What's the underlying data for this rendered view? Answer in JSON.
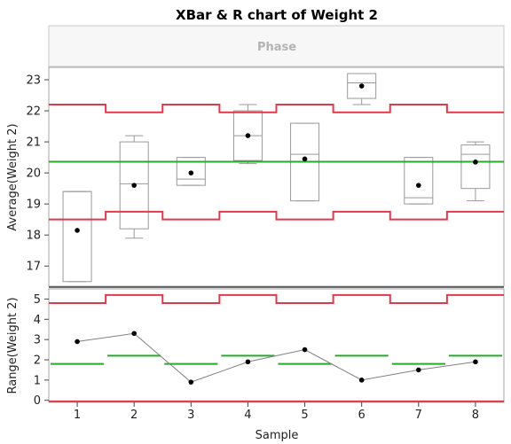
{
  "chart_data": {
    "type": "control-chart",
    "title": "XBar & R chart of Weight 2",
    "phase_label": "Phase",
    "xlabel": "Sample",
    "categories": [
      "1",
      "2",
      "3",
      "4",
      "5",
      "6",
      "7",
      "8"
    ],
    "colors": {
      "limit": "#e0394b",
      "center": "#2aa82a",
      "box": "#999999",
      "point": "#000000",
      "line": "#808080"
    },
    "xbar": {
      "ylabel": "Average(Weight 2)",
      "yticks": [
        "17",
        "18",
        "19",
        "20",
        "21",
        "22",
        "23"
      ],
      "ylim": [
        16.35,
        23.4
      ],
      "means": [
        18.15,
        19.6,
        20.0,
        21.2,
        20.45,
        22.8,
        19.6,
        20.35
      ],
      "boxes": [
        {
          "min": 16.5,
          "q1": 16.5,
          "median": 19.4,
          "q3": 19.4,
          "max": 19.4
        },
        {
          "min": 17.9,
          "q1": 18.2,
          "median": 19.65,
          "q3": 21.0,
          "max": 21.2
        },
        {
          "min": 19.6,
          "q1": 19.6,
          "median": 19.8,
          "q3": 20.5,
          "max": 20.5
        },
        {
          "min": 20.3,
          "q1": 20.4,
          "median": 21.2,
          "q3": 22.0,
          "max": 22.2
        },
        {
          "min": 19.1,
          "q1": 19.1,
          "median": 20.6,
          "q3": 21.6,
          "max": 21.6
        },
        {
          "min": 22.2,
          "q1": 22.4,
          "median": 22.9,
          "q3": 23.2,
          "max": 23.2
        },
        {
          "min": 19.0,
          "q1": 19.0,
          "median": 19.2,
          "q3": 20.5,
          "max": 20.5
        },
        {
          "min": 19.1,
          "q1": 19.5,
          "median": 20.6,
          "q3": 20.9,
          "max": 21.0
        }
      ],
      "center": 20.36,
      "ucl": [
        22.2,
        21.95,
        22.2,
        21.95,
        22.2,
        21.95,
        22.2,
        21.95
      ],
      "lcl": [
        18.5,
        18.75,
        18.5,
        18.75,
        18.5,
        18.75,
        18.5,
        18.75
      ]
    },
    "range": {
      "ylabel": "Range(Weight 2)",
      "yticks": [
        "0",
        "1",
        "2",
        "3",
        "4",
        "5"
      ],
      "ylim": [
        -0.1,
        5.5
      ],
      "values": [
        2.9,
        3.3,
        0.9,
        1.9,
        2.5,
        1.0,
        1.5,
        1.9
      ],
      "center": [
        1.8,
        2.2,
        1.8,
        2.2,
        1.8,
        2.2,
        1.8,
        2.2
      ],
      "ucl": [
        4.8,
        5.2,
        4.8,
        5.2,
        4.8,
        5.2,
        4.8,
        5.2
      ],
      "lcl": -0.05
    }
  }
}
